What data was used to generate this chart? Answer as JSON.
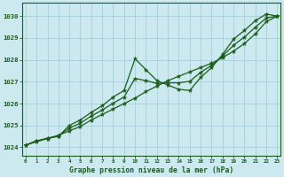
{
  "title": "Graphe pression niveau de la mer (hPa)",
  "bg_color": "#cce9f0",
  "grid_color": "#99ccd9",
  "line_color": "#1a5c1a",
  "x_ticks": [
    0,
    1,
    2,
    3,
    4,
    5,
    6,
    7,
    8,
    9,
    10,
    11,
    12,
    13,
    14,
    15,
    16,
    17,
    18,
    19,
    20,
    21,
    22,
    23
  ],
  "y_ticks": [
    1024,
    1025,
    1026,
    1027,
    1028,
    1029,
    1030
  ],
  "ylim": [
    1023.6,
    1030.6
  ],
  "xlim": [
    -0.3,
    23.3
  ],
  "series1_x": [
    0,
    1,
    2,
    3,
    4,
    5,
    6,
    7,
    8,
    9,
    10,
    11,
    12,
    13,
    14,
    15,
    16,
    17,
    18,
    19,
    20,
    21,
    22,
    23
  ],
  "series1_y": [
    1024.1,
    1024.3,
    1024.4,
    1024.5,
    1025.0,
    1025.25,
    1025.6,
    1025.9,
    1026.3,
    1026.6,
    1028.05,
    1027.55,
    1027.05,
    1026.85,
    1026.65,
    1026.6,
    1027.2,
    1027.65,
    1028.25,
    1028.95,
    1029.35,
    1029.8,
    1030.1,
    1030.0
  ],
  "series2_x": [
    0,
    1,
    2,
    3,
    4,
    5,
    6,
    7,
    8,
    9,
    10,
    11,
    12,
    13,
    14,
    15,
    16,
    17,
    18,
    19,
    20,
    21,
    22,
    23
  ],
  "series2_y": [
    1024.1,
    1024.25,
    1024.4,
    1024.55,
    1024.75,
    1024.95,
    1025.25,
    1025.5,
    1025.75,
    1026.0,
    1026.25,
    1026.55,
    1026.8,
    1027.05,
    1027.25,
    1027.45,
    1027.65,
    1027.85,
    1028.1,
    1028.4,
    1028.75,
    1029.2,
    1029.75,
    1030.0
  ],
  "series3_x": [
    0,
    1,
    2,
    3,
    4,
    5,
    6,
    7,
    8,
    9,
    10,
    11,
    12,
    13,
    14,
    15,
    16,
    17,
    18,
    19,
    20,
    21,
    22,
    23
  ],
  "series3_y": [
    1024.1,
    1024.28,
    1024.42,
    1024.52,
    1024.88,
    1025.1,
    1025.43,
    1025.7,
    1026.02,
    1026.3,
    1027.15,
    1027.05,
    1026.92,
    1026.95,
    1026.95,
    1027.02,
    1027.43,
    1027.75,
    1028.18,
    1028.67,
    1029.05,
    1029.5,
    1029.92,
    1030.0
  ]
}
